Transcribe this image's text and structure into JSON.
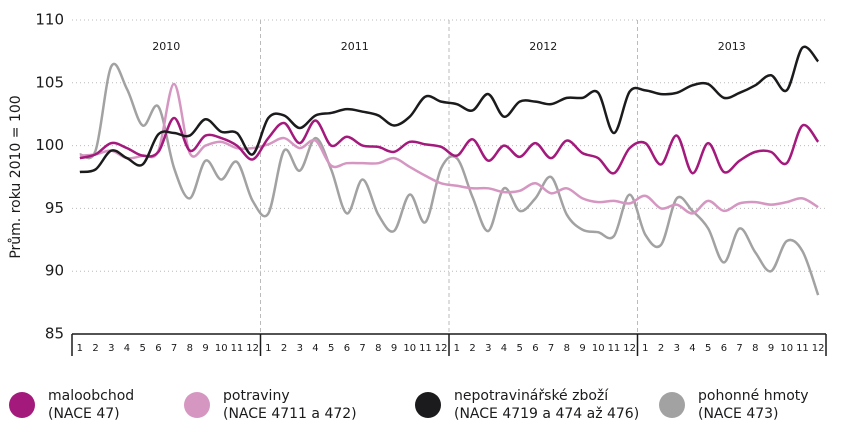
{
  "chart_data": {
    "type": "line",
    "y_label": "Prům. roku 2010 = 100",
    "years": [
      "2010",
      "2011",
      "2012",
      "2013"
    ],
    "categories": [
      "1",
      "2",
      "3",
      "4",
      "5",
      "6",
      "7",
      "8",
      "9",
      "10",
      "11",
      "12",
      "1",
      "2",
      "3",
      "4",
      "5",
      "6",
      "7",
      "8",
      "9",
      "10",
      "11",
      "12",
      "1",
      "2",
      "3",
      "4",
      "5",
      "6",
      "7",
      "8",
      "9",
      "10",
      "11",
      "12",
      "1",
      "2",
      "3",
      "4",
      "5",
      "6",
      "7",
      "8",
      "9",
      "10",
      "11",
      "12"
    ],
    "ylim": [
      85,
      110
    ],
    "yticks": [
      85,
      90,
      95,
      100,
      105,
      110
    ],
    "grid": true,
    "series": [
      {
        "name": "maloobchod",
        "code": "(NACE 47)",
        "color": "#a3197c",
        "values": [
          99.0,
          99.3,
          100.2,
          99.8,
          99.2,
          99.5,
          102.2,
          99.6,
          100.8,
          100.6,
          100.0,
          98.9,
          100.6,
          101.8,
          100.2,
          102.0,
          100.0,
          100.7,
          100.0,
          99.9,
          99.5,
          100.3,
          100.1,
          99.9,
          99.2,
          100.5,
          98.8,
          100.0,
          99.1,
          100.2,
          99.0,
          100.4,
          99.4,
          99.0,
          97.8,
          99.8,
          100.2,
          98.5,
          100.8,
          97.8,
          100.2,
          97.9,
          98.8,
          99.5,
          99.5,
          98.6,
          101.6,
          100.3
        ]
      },
      {
        "name": "potraviny",
        "code": "(NACE 4711 a 472)",
        "color": "#d597c1",
        "values": [
          99.2,
          99.3,
          99.6,
          99.0,
          99.2,
          99.6,
          104.9,
          99.4,
          100.0,
          100.3,
          99.8,
          99.8,
          100.1,
          100.6,
          99.8,
          100.4,
          98.4,
          98.6,
          98.6,
          98.6,
          99.0,
          98.3,
          97.6,
          97.0,
          96.8,
          96.6,
          96.6,
          96.3,
          96.4,
          97.0,
          96.2,
          96.6,
          95.8,
          95.5,
          95.6,
          95.4,
          96.0,
          95.0,
          95.3,
          94.6,
          95.6,
          94.8,
          95.4,
          95.5,
          95.3,
          95.5,
          95.8,
          95.1
        ]
      },
      {
        "name": "nepotravinářské zboží",
        "code": "(NACE 4719 a 474 až 476)",
        "color": "#1b1a1c",
        "values": [
          97.9,
          98.1,
          99.6,
          99.0,
          98.5,
          100.9,
          101.0,
          100.8,
          102.1,
          101.1,
          101.0,
          99.3,
          102.2,
          102.4,
          101.4,
          102.4,
          102.6,
          102.9,
          102.7,
          102.4,
          101.6,
          102.3,
          103.9,
          103.5,
          103.3,
          102.8,
          104.1,
          102.3,
          103.5,
          103.5,
          103.3,
          103.8,
          103.8,
          104.2,
          101.0,
          104.3,
          104.4,
          104.1,
          104.2,
          104.8,
          104.9,
          103.8,
          104.2,
          104.8,
          105.6,
          104.4,
          107.8,
          106.7
        ]
      },
      {
        "name": "pohonné hmoty",
        "code": "(NACE 473)",
        "color": "#a2a2a2",
        "values": [
          99.3,
          99.6,
          106.3,
          104.5,
          101.6,
          103.1,
          98.2,
          95.8,
          98.8,
          97.3,
          98.7,
          95.6,
          94.6,
          99.6,
          98.0,
          100.6,
          98.1,
          94.6,
          97.3,
          94.5,
          93.2,
          96.1,
          93.9,
          98.2,
          99.0,
          95.9,
          93.2,
          96.6,
          94.8,
          95.8,
          97.5,
          94.5,
          93.3,
          93.1,
          92.8,
          96.1,
          92.9,
          92.1,
          95.8,
          94.8,
          93.4,
          90.7,
          93.4,
          91.5,
          90.0,
          92.4,
          91.6,
          88.1
        ]
      }
    ]
  }
}
